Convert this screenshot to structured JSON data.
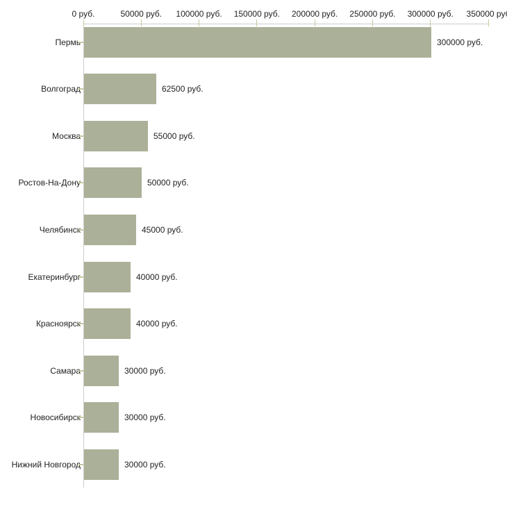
{
  "chart_data": {
    "type": "bar",
    "orientation": "horizontal",
    "title": "",
    "xlabel": "",
    "ylabel": "",
    "unit": "руб.",
    "categories": [
      "Пермь",
      "Волгоград",
      "Москва",
      "Ростов-На-Дону",
      "Челябинск",
      "Екатеринбург",
      "Красноярск",
      "Самара",
      "Новосибирск",
      "Нижний Новгород"
    ],
    "values": [
      300000,
      62500,
      55000,
      50000,
      45000,
      40000,
      40000,
      30000,
      30000,
      30000
    ],
    "value_labels": [
      "300000 руб.",
      "62500 руб.",
      "55000 руб.",
      "50000 руб.",
      "45000 руб.",
      "40000 руб.",
      "40000 руб.",
      "30000 руб.",
      "30000 руб.",
      "30000 руб."
    ],
    "x_axis": {
      "position": "top",
      "xlim": [
        0,
        350000
      ],
      "tick_values": [
        0,
        50000,
        100000,
        150000,
        200000,
        250000,
        300000,
        350000
      ],
      "tick_labels": [
        "0 руб.",
        "50000 руб.",
        "100000 руб.",
        "150000 руб.",
        "200000 руб.",
        "250000 руб.",
        "300000 руб.",
        "350000 руб"
      ]
    },
    "grid": false,
    "legend": false,
    "colors": {
      "bar_fill": "#abb098",
      "axis_line": "#cccccc",
      "tick_mark": "#c8c8a0",
      "text": "#222222",
      "background": "#ffffff"
    }
  }
}
